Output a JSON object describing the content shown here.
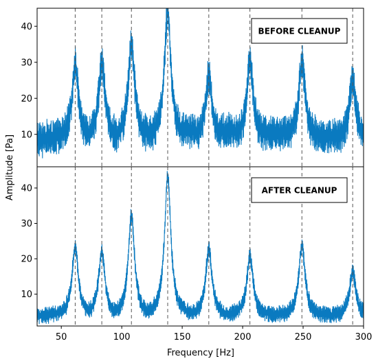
{
  "chart_data": [
    {
      "type": "line",
      "panel_label": "BEFORE CLEANUP",
      "xlabel": "Frequency [Hz]",
      "ylabel": "Amplitude [Pa]",
      "xlim": [
        30,
        300
      ],
      "ylim": [
        1,
        45
      ],
      "yticks": [
        10,
        20,
        30,
        40
      ],
      "xticks": [
        50,
        100,
        150,
        200,
        250,
        300
      ],
      "grid": false,
      "reference_lines_x": [
        61.5,
        83.5,
        108,
        138,
        172,
        206,
        249,
        291
      ],
      "series": [
        {
          "color": "#0a7ac0",
          "baseline": 9,
          "noise": 5,
          "peaks": [
            {
              "x": 61.5,
              "y": 30
            },
            {
              "x": 83.5,
              "y": 30.5
            },
            {
              "x": 108,
              "y": 36
            },
            {
              "x": 138,
              "y": 45
            },
            {
              "x": 172,
              "y": 27
            },
            {
              "x": 206,
              "y": 31
            },
            {
              "x": 249,
              "y": 31
            },
            {
              "x": 291,
              "y": 25
            }
          ]
        }
      ]
    },
    {
      "type": "line",
      "panel_label": "AFTER CLEANUP",
      "xlabel": "Frequency [Hz]",
      "ylabel": "Amplitude [Pa]",
      "xlim": [
        30,
        300
      ],
      "ylim": [
        1,
        46
      ],
      "yticks": [
        10,
        20,
        30,
        40
      ],
      "xticks": [
        50,
        100,
        150,
        200,
        250,
        300
      ],
      "grid": false,
      "reference_lines_x": [
        61.5,
        83.5,
        108,
        138,
        172,
        206,
        249,
        291
      ],
      "series": [
        {
          "color": "#0a7ac0",
          "baseline": 4,
          "noise": 2.5,
          "peaks": [
            {
              "x": 61.5,
              "y": 23.5
            },
            {
              "x": 83.5,
              "y": 22.5
            },
            {
              "x": 108,
              "y": 32.5
            },
            {
              "x": 138,
              "y": 43.5
            },
            {
              "x": 172,
              "y": 23
            },
            {
              "x": 206,
              "y": 21
            },
            {
              "x": 249,
              "y": 24
            },
            {
              "x": 291,
              "y": 16.5
            }
          ]
        }
      ]
    }
  ]
}
